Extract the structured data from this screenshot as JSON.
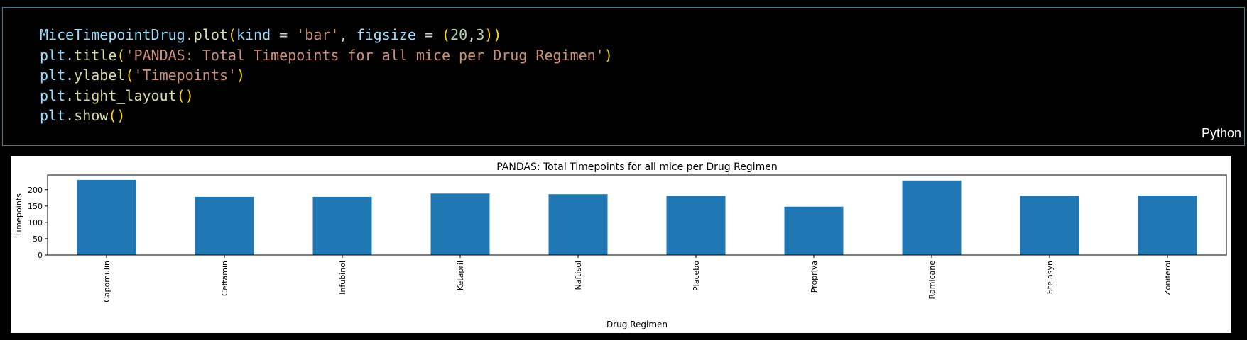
{
  "cell": {
    "language": "Python",
    "lines": [
      [
        [
          "t-var",
          "MiceTimepointDrug"
        ],
        [
          "t-pn",
          "."
        ],
        [
          "t-fn",
          "plot"
        ],
        [
          "t-br",
          "("
        ],
        [
          "t-kw",
          "kind"
        ],
        [
          "t-pn",
          " = "
        ],
        [
          "t-str",
          "'bar'"
        ],
        [
          "t-pn",
          ", "
        ],
        [
          "t-kw",
          "figsize"
        ],
        [
          "t-pn",
          " = "
        ],
        [
          "t-br",
          "("
        ],
        [
          "t-num",
          "20"
        ],
        [
          "t-pn",
          ","
        ],
        [
          "t-num",
          "3"
        ],
        [
          "t-br",
          "))"
        ]
      ],
      [
        [
          "t-var",
          "plt"
        ],
        [
          "t-pn",
          "."
        ],
        [
          "t-fn",
          "title"
        ],
        [
          "t-br",
          "("
        ],
        [
          "t-str",
          "'PANDAS: Total Timepoints for all mice per Drug Regimen'"
        ],
        [
          "t-br",
          ")"
        ]
      ],
      [
        [
          "t-var",
          "plt"
        ],
        [
          "t-pn",
          "."
        ],
        [
          "t-fn",
          "ylabel"
        ],
        [
          "t-br",
          "("
        ],
        [
          "t-str",
          "'Timepoints'"
        ],
        [
          "t-br",
          ")"
        ]
      ],
      [
        [
          "t-var",
          "plt"
        ],
        [
          "t-pn",
          "."
        ],
        [
          "t-fn",
          "tight_layout"
        ],
        [
          "t-br",
          "()"
        ]
      ],
      [
        [
          "t-var",
          "plt"
        ],
        [
          "t-pn",
          "."
        ],
        [
          "t-fn",
          "show"
        ],
        [
          "t-br",
          "()"
        ]
      ]
    ]
  },
  "chart_data": {
    "type": "bar",
    "title": "PANDAS: Total Timepoints for all mice per Drug Regimen",
    "xlabel": "Drug Regimen",
    "ylabel": "Timepoints",
    "categories": [
      "Capomulin",
      "Ceftamin",
      "Infubinol",
      "Ketapril",
      "Naftisol",
      "Placebo",
      "Propriva",
      "Ramicane",
      "Stelasyn",
      "Zoniferol"
    ],
    "values": [
      230,
      178,
      178,
      188,
      186,
      181,
      148,
      228,
      181,
      182
    ],
    "ylim": [
      0,
      245
    ],
    "yticks": [
      0,
      50,
      100,
      150,
      200
    ],
    "bar_color": "#1f77b4",
    "grid": false,
    "legend": "none"
  }
}
